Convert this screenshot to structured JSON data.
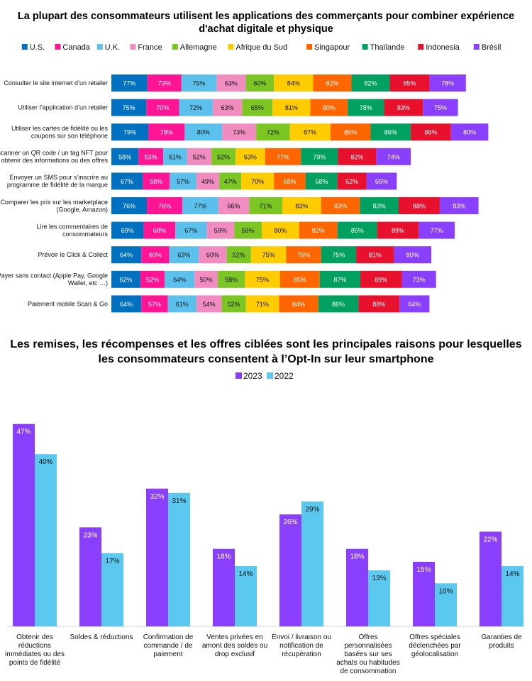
{
  "colors": {
    "countries": [
      "#0070c0",
      "#ff1493",
      "#5bc0eb",
      "#f08cc0",
      "#7cc623",
      "#ffcc00",
      "#ff6600",
      "#00a060",
      "#e8112d",
      "#8a3ffc"
    ],
    "year2023": "#8a3ffc",
    "year2022": "#5bc8ef"
  },
  "chart_data": [
    {
      "type": "bar",
      "orientation": "horizontal-stacked",
      "title": "La plupart des consommateurs utilisent les applications des commerçants pour combiner expérience d'achat digitale et physique",
      "legend_position": "top",
      "series_names": [
        "U.S.",
        "Canada",
        "U.K.",
        "France",
        "Allemagne",
        "Afrique du Sud",
        "Singapour",
        "Thaïlande",
        "Indonesia",
        "Brésil"
      ],
      "categories": [
        [
          "Consulter le site internet d’un retailer"
        ],
        [
          "Utiliser l’application d’un retailer"
        ],
        [
          "Utiliser les cartes de fidélité ou les",
          "coupons sur son téléphone"
        ],
        [
          "Scanner un QR code / un tag NFT pour",
          "obtenir des informations ou des offres"
        ],
        [
          "Envoyer un SMS pour s’inscrire au",
          "programme de fidélité de la marque"
        ],
        [
          "Comparer les prix sur les marketplace",
          "(Google, Amazon)"
        ],
        [
          "Lire les commentaires de",
          "consommateurs"
        ],
        [
          "Prévoir le Click & Collect"
        ],
        [
          "Payer sans contact (Apple Pay, Google",
          "Wallet, etc …)"
        ],
        [
          "Paiement mobile Scan & Go"
        ]
      ],
      "values": [
        [
          77,
          73,
          75,
          63,
          60,
          84,
          82,
          82,
          85,
          78
        ],
        [
          75,
          70,
          72,
          63,
          65,
          81,
          80,
          78,
          83,
          75
        ],
        [
          79,
          78,
          80,
          73,
          72,
          87,
          86,
          86,
          86,
          80
        ],
        [
          58,
          53,
          51,
          52,
          52,
          63,
          77,
          79,
          82,
          74
        ],
        [
          67,
          58,
          57,
          49,
          47,
          70,
          68,
          68,
          62,
          65
        ],
        [
          76,
          76,
          77,
          66,
          71,
          83,
          83,
          83,
          88,
          83
        ],
        [
          69,
          68,
          67,
          59,
          59,
          80,
          82,
          85,
          89,
          77
        ],
        [
          64,
          60,
          63,
          60,
          52,
          75,
          75,
          75,
          81,
          80
        ],
        [
          62,
          52,
          64,
          50,
          58,
          75,
          85,
          87,
          89,
          73
        ],
        [
          64,
          57,
          61,
          54,
          52,
          71,
          84,
          86,
          88,
          64
        ]
      ],
      "unit": "%"
    },
    {
      "type": "bar",
      "title": "Les remises, les récompenses et les offres ciblées sont les principales raisons pour lesquelles les consommateurs consentent à l’Opt-In sur leur smartphone",
      "legend_position": "top",
      "categories": [
        [
          "Obtenir des",
          "réductions",
          "immédiates ou des",
          "points de fidélité"
        ],
        [
          "Soldes & réductions"
        ],
        [
          "Confirmation de",
          "commande / de",
          "paiement"
        ],
        [
          "Ventes privées en",
          "amont des soldes ou",
          "drop exclusif"
        ],
        [
          "Envoi / livraison ou",
          "notification de",
          "récupération"
        ],
        [
          "Offres",
          "personnalisées",
          "basées sur ses",
          "achats ou habitudes",
          "de consommation"
        ],
        [
          "Offres spéciales",
          "déclenchées par",
          "géolocalisation"
        ],
        [
          "Garanties de",
          "produits"
        ]
      ],
      "series": [
        {
          "name": "2023",
          "values": [
            47,
            23,
            32,
            18,
            26,
            18,
            15,
            22
          ]
        },
        {
          "name": "2022",
          "values": [
            40,
            17,
            31,
            14,
            29,
            13,
            10,
            14
          ]
        }
      ],
      "unit": "%",
      "ylim": [
        0,
        50
      ]
    }
  ]
}
